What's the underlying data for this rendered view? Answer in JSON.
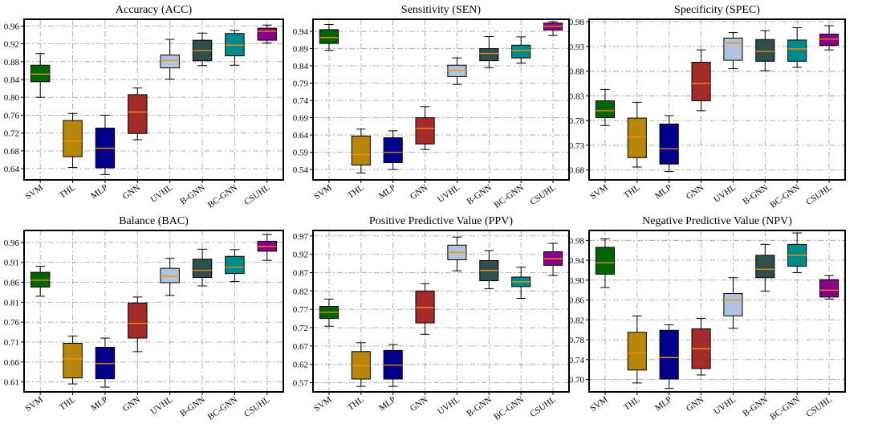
{
  "chart_data": [
    {
      "type": "box",
      "title": "Accuracy (ACC)",
      "categories": [
        "SVM",
        "THL",
        "MLP",
        "GNN",
        "UVHL",
        "B-GNN",
        "BC-GNN",
        "CSUHL"
      ],
      "yticks": [
        0.64,
        0.68,
        0.72,
        0.76,
        0.8,
        0.84,
        0.88,
        0.92,
        0.96
      ],
      "tick_labels": [
        "0.64",
        "0.68",
        "0.72",
        "0.76",
        "0.80",
        "0.84",
        "0.88",
        "0.92",
        "0.96"
      ],
      "ylim": [
        0.615,
        0.975
      ],
      "boxes": [
        {
          "whislo": 0.8,
          "q1": 0.835,
          "med": 0.852,
          "q3": 0.872,
          "whishi": 0.898
        },
        {
          "whislo": 0.643,
          "q1": 0.667,
          "med": 0.702,
          "q3": 0.748,
          "whishi": 0.764
        },
        {
          "whislo": 0.627,
          "q1": 0.642,
          "med": 0.686,
          "q3": 0.731,
          "whishi": 0.76
        },
        {
          "whislo": 0.705,
          "q1": 0.719,
          "med": 0.767,
          "q3": 0.806,
          "whishi": 0.821
        },
        {
          "whislo": 0.841,
          "q1": 0.866,
          "med": 0.883,
          "q3": 0.895,
          "whishi": 0.93
        },
        {
          "whislo": 0.871,
          "q1": 0.882,
          "med": 0.905,
          "q3": 0.928,
          "whishi": 0.944
        },
        {
          "whislo": 0.872,
          "q1": 0.893,
          "med": 0.917,
          "q3": 0.943,
          "whishi": 0.95
        },
        {
          "whislo": 0.922,
          "q1": 0.928,
          "med": 0.948,
          "q3": 0.955,
          "whishi": 0.962
        }
      ]
    },
    {
      "type": "box",
      "title": "Sensitivity (SEN)",
      "categories": [
        "SVM",
        "THL",
        "MLP",
        "GNN",
        "UVHL",
        "B-GNN",
        "BC-GNN",
        "CSUHL"
      ],
      "yticks": [
        0.54,
        0.59,
        0.64,
        0.69,
        0.74,
        0.79,
        0.84,
        0.89,
        0.94
      ],
      "tick_labels": [
        "0.54",
        "0.59",
        "0.64",
        "0.69",
        "0.74",
        "0.79",
        "0.84",
        "0.89",
        "0.94"
      ],
      "ylim": [
        0.51,
        0.975
      ],
      "boxes": [
        {
          "whislo": 0.885,
          "q1": 0.905,
          "med": 0.922,
          "q3": 0.945,
          "whishi": 0.96
        },
        {
          "whislo": 0.53,
          "q1": 0.553,
          "med": 0.583,
          "q3": 0.637,
          "whishi": 0.657
        },
        {
          "whislo": 0.54,
          "q1": 0.56,
          "med": 0.59,
          "q3": 0.632,
          "whishi": 0.652
        },
        {
          "whislo": 0.598,
          "q1": 0.614,
          "med": 0.659,
          "q3": 0.69,
          "whishi": 0.722
        },
        {
          "whislo": 0.786,
          "q1": 0.809,
          "med": 0.827,
          "q3": 0.842,
          "whishi": 0.863
        },
        {
          "whislo": 0.835,
          "q1": 0.855,
          "med": 0.876,
          "q3": 0.89,
          "whishi": 0.925
        },
        {
          "whislo": 0.848,
          "q1": 0.863,
          "med": 0.885,
          "q3": 0.9,
          "whishi": 0.924
        },
        {
          "whislo": 0.928,
          "q1": 0.944,
          "med": 0.955,
          "q3": 0.964,
          "whishi": 0.968
        }
      ]
    },
    {
      "type": "box",
      "title": "Specificity (SPEC)",
      "categories": [
        "SVM",
        "THL",
        "MLP",
        "GNN",
        "UVHL",
        "B-GNN",
        "BC-GNN",
        "CSUHL"
      ],
      "yticks": [
        0.68,
        0.73,
        0.78,
        0.83,
        0.88,
        0.93,
        0.98
      ],
      "tick_labels": [
        "0.68",
        "0.73",
        "0.78",
        "0.83",
        "0.88",
        "0.93",
        "0.98"
      ],
      "ylim": [
        0.66,
        0.985
      ],
      "boxes": [
        {
          "whislo": 0.77,
          "q1": 0.786,
          "med": 0.8,
          "q3": 0.82,
          "whishi": 0.843
        },
        {
          "whislo": 0.686,
          "q1": 0.705,
          "med": 0.747,
          "q3": 0.785,
          "whishi": 0.817
        },
        {
          "whislo": 0.677,
          "q1": 0.692,
          "med": 0.723,
          "q3": 0.773,
          "whishi": 0.79
        },
        {
          "whislo": 0.8,
          "q1": 0.82,
          "med": 0.855,
          "q3": 0.898,
          "whishi": 0.923
        },
        {
          "whislo": 0.885,
          "q1": 0.902,
          "med": 0.937,
          "q3": 0.947,
          "whishi": 0.958
        },
        {
          "whislo": 0.881,
          "q1": 0.9,
          "med": 0.92,
          "q3": 0.944,
          "whishi": 0.962
        },
        {
          "whislo": 0.888,
          "q1": 0.9,
          "med": 0.925,
          "q3": 0.943,
          "whishi": 0.968
        },
        {
          "whislo": 0.923,
          "q1": 0.932,
          "med": 0.945,
          "q3": 0.955,
          "whishi": 0.972
        }
      ]
    },
    {
      "type": "box",
      "title": "Balance (BAC)",
      "categories": [
        "SVM",
        "THL",
        "MLP",
        "GNN",
        "UVHL",
        "B-GNN",
        "BC-GNN",
        "CSUHL"
      ],
      "yticks": [
        0.61,
        0.66,
        0.71,
        0.76,
        0.81,
        0.86,
        0.91,
        0.96
      ],
      "tick_labels": [
        "0.61",
        "0.66",
        "0.71",
        "0.76",
        "0.81",
        "0.86",
        "0.91",
        "0.96"
      ],
      "ylim": [
        0.585,
        0.99
      ],
      "boxes": [
        {
          "whislo": 0.825,
          "q1": 0.848,
          "med": 0.865,
          "q3": 0.885,
          "whishi": 0.9
        },
        {
          "whislo": 0.605,
          "q1": 0.62,
          "med": 0.668,
          "q3": 0.707,
          "whishi": 0.725
        },
        {
          "whislo": 0.597,
          "q1": 0.618,
          "med": 0.656,
          "q3": 0.697,
          "whishi": 0.72
        },
        {
          "whislo": 0.686,
          "q1": 0.72,
          "med": 0.757,
          "q3": 0.808,
          "whishi": 0.823
        },
        {
          "whislo": 0.827,
          "q1": 0.859,
          "med": 0.875,
          "q3": 0.895,
          "whishi": 0.92
        },
        {
          "whislo": 0.851,
          "q1": 0.872,
          "med": 0.89,
          "q3": 0.918,
          "whishi": 0.943
        },
        {
          "whislo": 0.862,
          "q1": 0.882,
          "med": 0.898,
          "q3": 0.925,
          "whishi": 0.942
        },
        {
          "whislo": 0.915,
          "q1": 0.938,
          "med": 0.95,
          "q3": 0.963,
          "whishi": 0.98
        }
      ]
    },
    {
      "type": "box",
      "title": "Positive Predictive Value (PPV)",
      "categories": [
        "SVM",
        "THL",
        "MLP",
        "GNN",
        "UVHL",
        "B-GNN",
        "BC-GNN",
        "CSUHL"
      ],
      "yticks": [
        0.57,
        0.62,
        0.67,
        0.72,
        0.77,
        0.82,
        0.87,
        0.92,
        0.97
      ],
      "tick_labels": [
        "0.57",
        "0.62",
        "0.67",
        "0.72",
        "0.77",
        "0.82",
        "0.87",
        "0.92",
        "0.97"
      ],
      "ylim": [
        0.545,
        0.985
      ],
      "boxes": [
        {
          "whislo": 0.724,
          "q1": 0.745,
          "med": 0.762,
          "q3": 0.778,
          "whishi": 0.798
        },
        {
          "whislo": 0.56,
          "q1": 0.58,
          "med": 0.616,
          "q3": 0.655,
          "whishi": 0.679
        },
        {
          "whislo": 0.56,
          "q1": 0.58,
          "med": 0.618,
          "q3": 0.658,
          "whishi": 0.674
        },
        {
          "whislo": 0.702,
          "q1": 0.733,
          "med": 0.775,
          "q3": 0.82,
          "whishi": 0.84
        },
        {
          "whislo": 0.875,
          "q1": 0.905,
          "med": 0.925,
          "q3": 0.945,
          "whishi": 0.967
        },
        {
          "whislo": 0.826,
          "q1": 0.848,
          "med": 0.876,
          "q3": 0.903,
          "whishi": 0.93
        },
        {
          "whislo": 0.8,
          "q1": 0.832,
          "med": 0.845,
          "q3": 0.858,
          "whishi": 0.885
        },
        {
          "whislo": 0.862,
          "q1": 0.89,
          "med": 0.908,
          "q3": 0.927,
          "whishi": 0.95
        }
      ]
    },
    {
      "type": "box",
      "title": "Negative Predictive Value (NPV)",
      "categories": [
        "SVM",
        "THL",
        "MLP",
        "GNN",
        "UVHL",
        "B-GNN",
        "BC-GNN",
        "CSUHL"
      ],
      "yticks": [
        0.7,
        0.74,
        0.78,
        0.82,
        0.86,
        0.9,
        0.94,
        0.98
      ],
      "tick_labels": [
        "0.70",
        "0.74",
        "0.78",
        "0.82",
        "0.86",
        "0.90",
        "0.94",
        "0.98"
      ],
      "ylim": [
        0.675,
        1.0
      ],
      "boxes": [
        {
          "whislo": 0.885,
          "q1": 0.912,
          "med": 0.935,
          "q3": 0.966,
          "whishi": 0.983
        },
        {
          "whislo": 0.693,
          "q1": 0.719,
          "med": 0.753,
          "q3": 0.795,
          "whishi": 0.828
        },
        {
          "whislo": 0.682,
          "q1": 0.701,
          "med": 0.744,
          "q3": 0.799,
          "whishi": 0.81
        },
        {
          "whislo": 0.709,
          "q1": 0.722,
          "med": 0.762,
          "q3": 0.802,
          "whishi": 0.823
        },
        {
          "whislo": 0.803,
          "q1": 0.828,
          "med": 0.86,
          "q3": 0.873,
          "whishi": 0.905
        },
        {
          "whislo": 0.878,
          "q1": 0.905,
          "med": 0.922,
          "q3": 0.95,
          "whishi": 0.972
        },
        {
          "whislo": 0.915,
          "q1": 0.928,
          "med": 0.95,
          "q3": 0.972,
          "whishi": 0.995
        },
        {
          "whislo": 0.862,
          "q1": 0.866,
          "med": 0.88,
          "q3": 0.901,
          "whishi": 0.909
        }
      ]
    }
  ],
  "colors": {
    "boxes": [
      "#006400",
      "#b8860b",
      "#00008b",
      "#a52a2a",
      "#b0c4de",
      "#2f4f4f",
      "#008b8b",
      "#8b008b"
    ],
    "median": "#ff8c00",
    "grid": "#a8a8a8",
    "axis": "#000000"
  }
}
